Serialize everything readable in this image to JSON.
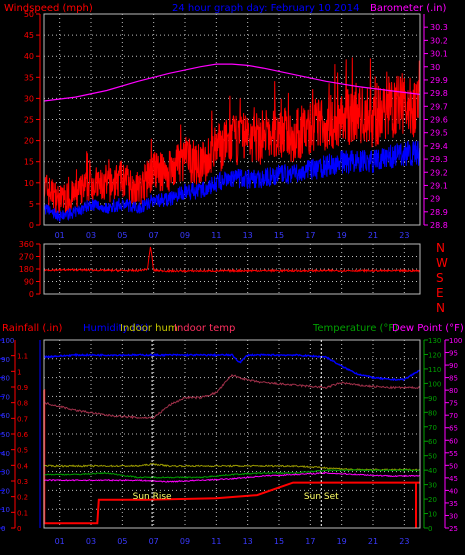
{
  "header": {
    "windspeed_label": "Windspeed (mph)",
    "graph_title": "24 hour graph day:  February 10 2014",
    "barometer_label": "Barometer (.in)"
  },
  "colors": {
    "background": "#000000",
    "grid": "#bdbdbd",
    "red": "#ff0000",
    "blue": "#0000ff",
    "magenta": "#ff00ff",
    "green": "#00a000",
    "olive": "#9b9b00",
    "yellow": "#ffff66",
    "maroon": "#a0304a"
  },
  "wind_direction_letters": [
    "N",
    "W",
    "S",
    "E",
    "N"
  ],
  "bottom_header": {
    "rainfall": "Rainfall (.in)",
    "humidity": "Humidity (%)",
    "indoor_hum": "Indoor hum",
    "indoor_temp": "Indoor temp",
    "temperature": "Temperature (°F)",
    "dew_point": "Dew Point (°F)"
  },
  "sun": {
    "rise_label": "Sun Rise",
    "rise_hour": 6.9,
    "set_label": "Sun Set",
    "set_hour": 17.7
  },
  "chart_data": [
    {
      "type": "line",
      "title": "24 hour graph day:  February 10 2014",
      "ylabel": "Windspeed (mph)",
      "y2label": "Barometer (.in)",
      "x_tick_labels": [
        "01",
        "03",
        "05",
        "07",
        "09",
        "11",
        "13",
        "15",
        "17",
        "19",
        "21",
        "23"
      ],
      "xlim": [
        0,
        24
      ],
      "ylim": [
        0,
        50
      ],
      "y_ticks": [
        0,
        5,
        10,
        15,
        20,
        25,
        30,
        35,
        40,
        45,
        50
      ],
      "y2lim": [
        28.8,
        30.4
      ],
      "y2_ticks": [
        "28.8",
        "28.9",
        "29",
        "29.1",
        "29.2",
        "29.3",
        "29.4",
        "29.5",
        "29.6",
        "29.7",
        "29.8",
        "29.9",
        "30",
        "30.1",
        "30.2",
        "30.3"
      ],
      "grid": true,
      "series": [
        {
          "name": "Windspeed",
          "axis": "left",
          "color": "#ff0000",
          "x": [
            0,
            1,
            2,
            3,
            4,
            5,
            6,
            7,
            8,
            9,
            10,
            11,
            12,
            13,
            14,
            15,
            16,
            17,
            18,
            19,
            20,
            21,
            22,
            23,
            24
          ],
          "y": [
            9,
            6,
            7,
            10,
            9,
            11,
            8,
            13,
            12,
            16,
            14,
            18,
            20,
            21,
            20,
            22,
            21,
            23,
            24,
            25,
            26,
            25,
            28,
            29,
            27
          ]
        },
        {
          "name": "Gust",
          "axis": "left",
          "color": "#0000ff",
          "x": [
            0,
            1,
            2,
            3,
            4,
            5,
            6,
            7,
            8,
            9,
            10,
            11,
            12,
            13,
            14,
            15,
            16,
            17,
            18,
            19,
            20,
            21,
            22,
            23,
            24
          ],
          "y": [
            4,
            2,
            3,
            5,
            4,
            5,
            4,
            6,
            6,
            8,
            8,
            10,
            11,
            11,
            11,
            12,
            12,
            13,
            14,
            15,
            15,
            15,
            16,
            17,
            17
          ]
        },
        {
          "name": "Barometer",
          "axis": "right",
          "color": "#ff00ff",
          "x": [
            0,
            2,
            4,
            6,
            8,
            10,
            11,
            12,
            13,
            14,
            16,
            18,
            20,
            22,
            24
          ],
          "y": [
            29.74,
            29.77,
            29.82,
            29.89,
            29.95,
            30.0,
            30.02,
            30.02,
            30.01,
            29.99,
            29.94,
            29.89,
            29.85,
            29.82,
            29.79
          ]
        }
      ]
    },
    {
      "type": "line",
      "ylabel": "Wind direction",
      "xlim": [
        0,
        24
      ],
      "ylim": [
        0,
        360
      ],
      "y_ticks": [
        0,
        90,
        180,
        270,
        360
      ],
      "grid": true,
      "series": [
        {
          "name": "Wind direction",
          "color": "#ff0000",
          "x": [
            0,
            2,
            4,
            6,
            6.6,
            6.8,
            7,
            8,
            10,
            12,
            14,
            16,
            18,
            20,
            22,
            24
          ],
          "y": [
            172,
            174,
            170,
            168,
            178,
            345,
            170,
            165,
            166,
            167,
            168,
            167,
            168,
            168,
            167,
            167
          ]
        }
      ]
    },
    {
      "type": "line",
      "title": "",
      "ylabel": "Rainfall (.in)",
      "x_tick_labels": [
        "01",
        "03",
        "05",
        "07",
        "09",
        "11",
        "13",
        "15",
        "17",
        "19",
        "21",
        "23"
      ],
      "xlim": [
        0,
        24
      ],
      "rain_ticks": [
        "0",
        "0.1",
        "0.2",
        "0.3",
        "0.4",
        "0.5",
        "0.6",
        "0.7",
        "0.8",
        "0.9",
        "1",
        "1.1"
      ],
      "ylim_rain": [
        0,
        1.2
      ],
      "hum_ticks": [
        0,
        10,
        20,
        30,
        40,
        50,
        60,
        70,
        80,
        90,
        100
      ],
      "ylim_hum": [
        0,
        100
      ],
      "indoor_temp_ticks": [
        25,
        30,
        35,
        40,
        45,
        50,
        55,
        60,
        65,
        70,
        75,
        80,
        85,
        90,
        95,
        100
      ],
      "ylim_indoor_temp": [
        25,
        100
      ],
      "temp_ticks": [
        0,
        10,
        20,
        30,
        40,
        50,
        60,
        70,
        80,
        90,
        100,
        110,
        120,
        130
      ],
      "ylim_temp": [
        0,
        130
      ],
      "grid": true,
      "series": [
        {
          "name": "Rainfall",
          "axis": "rain",
          "color": "#ff0000",
          "x": [
            0,
            0.01,
            0.02,
            3,
            3.4,
            3.5,
            6.5,
            11,
            13.6,
            15.9,
            16,
            24
          ],
          "y": [
            0.88,
            0.88,
            0.03,
            0.03,
            0.03,
            0.18,
            0.18,
            0.19,
            0.21,
            0.29,
            0.29,
            0.29
          ]
        },
        {
          "name": "Humidity",
          "axis": "hum",
          "color": "#0000ff",
          "x": [
            0,
            2,
            4,
            6,
            8,
            10,
            12,
            12.5,
            13,
            14,
            16,
            18,
            19,
            20,
            21,
            22,
            23,
            24
          ],
          "y": [
            91,
            92,
            92,
            92,
            92,
            92,
            92,
            88,
            92,
            92,
            92,
            91,
            86,
            82,
            80,
            79,
            79,
            84
          ]
        },
        {
          "name": "Indoor hum",
          "axis": "hum",
          "color": "#9b9b00",
          "x": [
            0,
            2,
            4,
            6,
            7,
            8,
            10,
            12,
            14,
            16,
            18,
            20,
            22,
            24
          ],
          "y": [
            33,
            33,
            33,
            33,
            34,
            33,
            33,
            33,
            33,
            33,
            32,
            31,
            31,
            31
          ]
        },
        {
          "name": "Indoor temp",
          "axis": "indoor_temp",
          "color": "#a0304a",
          "x": [
            0,
            2,
            4,
            6,
            7,
            8,
            9,
            10,
            11,
            12,
            13,
            14,
            16,
            18,
            19,
            20,
            22,
            24
          ],
          "y": [
            75,
            72,
            70,
            69,
            69,
            74,
            77,
            77,
            79,
            86,
            84,
            83,
            82,
            81,
            83,
            82,
            81,
            81
          ]
        },
        {
          "name": "Temperature",
          "axis": "temp",
          "color": "#00a000",
          "x": [
            0,
            2,
            4,
            6,
            8,
            10,
            12,
            14,
            16,
            18,
            20,
            22,
            24
          ],
          "y": [
            37,
            37,
            38,
            35,
            35,
            35,
            37,
            38,
            38,
            40,
            40,
            40,
            40
          ]
        },
        {
          "name": "Dew Point",
          "axis": "temp",
          "color": "#ff00ff",
          "x": [
            0,
            2,
            4,
            6,
            8,
            10,
            12,
            14,
            16,
            18,
            20,
            22,
            24
          ],
          "y": [
            33,
            33,
            33,
            33,
            32,
            33,
            34,
            36,
            37,
            38,
            37,
            36,
            36
          ]
        }
      ]
    }
  ]
}
